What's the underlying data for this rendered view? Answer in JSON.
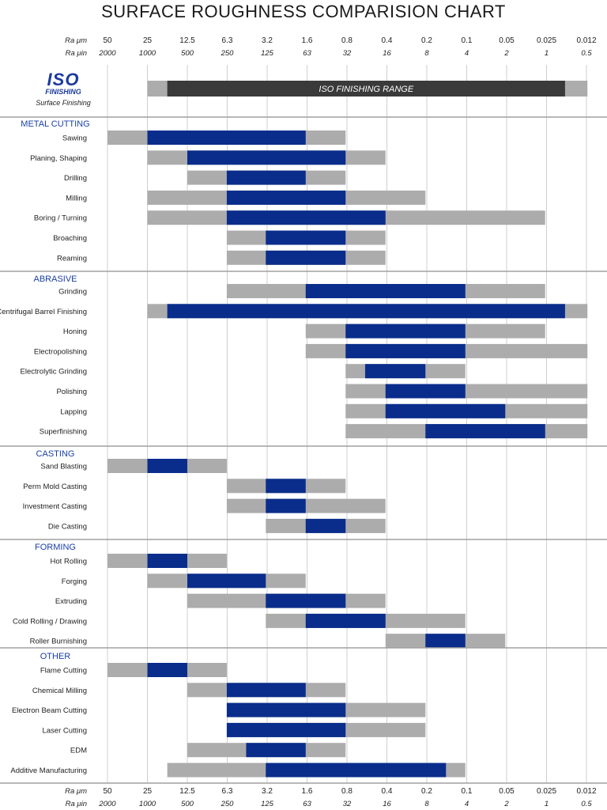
{
  "title": "SURFACE ROUGHNESS COMPARISION CHART",
  "colors": {
    "highlight": "#0a2d8c",
    "range": "#acacac",
    "iso_bar": "#3a3a3a",
    "category": "#1a3fa8",
    "divider": "#a0a0a0",
    "grid": "#cfcfcf"
  },
  "axis": {
    "ra_um_label": "Ra μm",
    "ra_uin_label": "Ra μin",
    "ra_um": [
      "50",
      "25",
      "12.5",
      "6.3",
      "3.2",
      "1.6",
      "0.8",
      "0.4",
      "0.2",
      "0.1",
      "0.05",
      "0.025",
      "0.012"
    ],
    "ra_uin": [
      "2000",
      "1000",
      "500",
      "250",
      "125",
      "63",
      "32",
      "16",
      "8",
      "4",
      "2",
      "1",
      "0.5"
    ]
  },
  "logo": {
    "text_top": "ISO",
    "text_mid": "FINISHING",
    "subtitle": "Surface Finishing"
  },
  "chart_data": {
    "type": "range_bar",
    "title": "SURFACE ROUGHNESS COMPARISION CHART",
    "x_axis": "Ra μm (log scale, decreasing)",
    "iso_range": {
      "label": "ISO FINISHING RANGE",
      "outer": [
        25,
        0.012
      ],
      "inner": [
        17.7,
        0.0177
      ]
    },
    "groups": [
      {
        "name": "METAL CUTTING",
        "rows": [
          {
            "label": "Sawing",
            "outer": [
              50,
              0.8
            ],
            "inner": [
              25,
              1.6
            ]
          },
          {
            "label": "Planing, Shaping",
            "outer": [
              25,
              0.4
            ],
            "inner": [
              12.5,
              0.8
            ]
          },
          {
            "label": "Drilling",
            "outer": [
              12.5,
              0.8
            ],
            "inner": [
              6.3,
              1.6
            ]
          },
          {
            "label": "Milling",
            "outer": [
              25,
              0.2
            ],
            "inner": [
              6.3,
              0.8
            ]
          },
          {
            "label": "Boring / Turning",
            "outer": [
              25,
              0.025
            ],
            "inner": [
              6.3,
              0.4
            ]
          },
          {
            "label": "Broaching",
            "outer": [
              6.3,
              0.4
            ],
            "inner": [
              3.2,
              0.8
            ]
          },
          {
            "label": "Reaming",
            "outer": [
              6.3,
              0.4
            ],
            "inner": [
              3.2,
              0.8
            ]
          }
        ]
      },
      {
        "name": "ABRASIVE",
        "rows": [
          {
            "label": "Grinding",
            "outer": [
              6.3,
              0.025
            ],
            "inner": [
              1.6,
              0.1
            ]
          },
          {
            "label": "Centrifugal Barrel Finishing",
            "outer": [
              25,
              0.012
            ],
            "inner": [
              17.7,
              0.0177
            ]
          },
          {
            "label": "Honing",
            "outer": [
              1.6,
              0.025
            ],
            "inner": [
              0.8,
              0.1
            ]
          },
          {
            "label": "Electropolishing",
            "outer": [
              1.6,
              0.012
            ],
            "inner": [
              0.8,
              0.1
            ]
          },
          {
            "label": "Electrolytic Grinding",
            "outer": [
              0.8,
              0.1
            ],
            "inner": [
              0.57,
              0.2
            ]
          },
          {
            "label": "Polishing",
            "outer": [
              0.8,
              0.012
            ],
            "inner": [
              0.4,
              0.1
            ]
          },
          {
            "label": "Lapping",
            "outer": [
              0.8,
              0.012
            ],
            "inner": [
              0.4,
              0.05
            ]
          },
          {
            "label": "Superfinishing",
            "outer": [
              0.8,
              0.012
            ],
            "inner": [
              0.2,
              0.025
            ]
          }
        ]
      },
      {
        "name": "CASTING",
        "rows": [
          {
            "label": "Sand Blasting",
            "outer": [
              50,
              6.3
            ],
            "inner": [
              25,
              12.5
            ]
          },
          {
            "label": "Perm Mold Casting",
            "outer": [
              6.3,
              0.8
            ],
            "inner": [
              3.2,
              1.6
            ]
          },
          {
            "label": "Investment Casting",
            "outer": [
              6.3,
              0.4
            ],
            "inner": [
              3.2,
              1.6
            ]
          },
          {
            "label": "Die Casting",
            "outer": [
              3.2,
              0.4
            ],
            "inner": [
              1.6,
              0.8
            ]
          }
        ]
      },
      {
        "name": "FORMING",
        "rows": [
          {
            "label": "Hot Rolling",
            "outer": [
              50,
              6.3
            ],
            "inner": [
              25,
              12.5
            ]
          },
          {
            "label": "Forging",
            "outer": [
              25,
              1.6
            ],
            "inner": [
              12.5,
              3.2
            ]
          },
          {
            "label": "Extruding",
            "outer": [
              12.5,
              0.4
            ],
            "inner": [
              3.2,
              0.8
            ]
          },
          {
            "label": "Cold Rolling / Drawing",
            "outer": [
              3.2,
              0.1
            ],
            "inner": [
              1.6,
              0.4
            ]
          },
          {
            "label": "Roller Burnishing",
            "outer": [
              0.4,
              0.05
            ],
            "inner": [
              0.2,
              0.1
            ]
          }
        ]
      },
      {
        "name": "OTHER",
        "rows": [
          {
            "label": "Flame Cutting",
            "outer": [
              50,
              6.3
            ],
            "inner": [
              25,
              12.5
            ]
          },
          {
            "label": "Chemical Milling",
            "outer": [
              12.5,
              0.8
            ],
            "inner": [
              6.3,
              1.6
            ]
          },
          {
            "label": "Electron Beam Cutting",
            "outer": [
              6.3,
              0.2
            ],
            "inner": [
              6.3,
              0.8
            ]
          },
          {
            "label": "Laser Cutting",
            "outer": [
              6.3,
              0.2
            ],
            "inner": [
              6.3,
              0.8
            ]
          },
          {
            "label": "EDM",
            "outer": [
              12.5,
              0.8
            ],
            "inner": [
              4.5,
              1.6
            ]
          },
          {
            "label": "Additive Manufacturing",
            "outer": [
              17.7,
              0.1
            ],
            "inner": [
              3.2,
              0.14
            ]
          }
        ]
      }
    ]
  }
}
